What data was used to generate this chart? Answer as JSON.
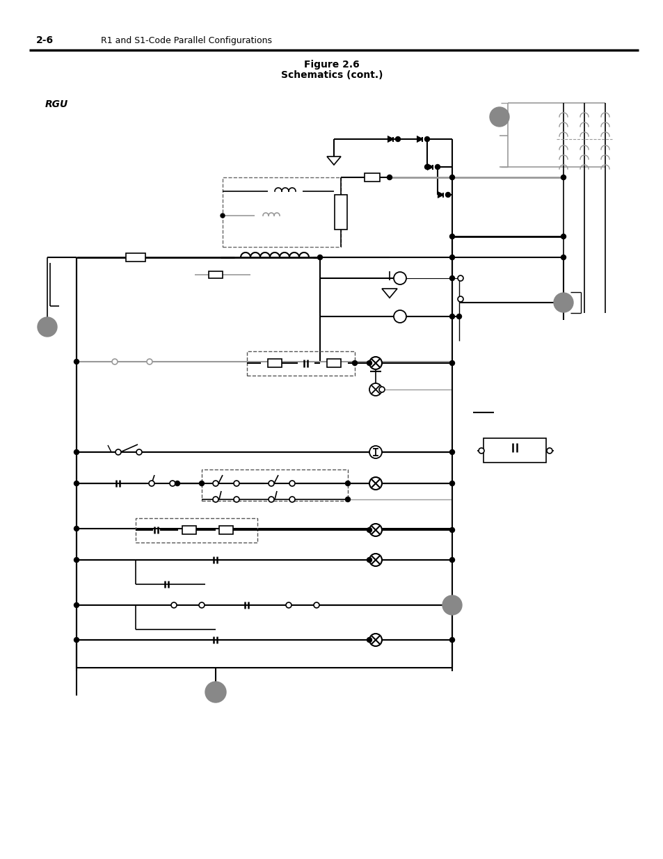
{
  "title_main": "Figure 2.6",
  "title_sub": "Schematics (cont.)",
  "header_left": "2-6",
  "header_right": "R1 and S1-Code Parallel Configurations",
  "label_rgu": "RGU",
  "bg_color": "#ffffff",
  "line_color": "#000000",
  "gray_color": "#999999",
  "dashed_color": "#444444",
  "circle_fill": "#888888"
}
